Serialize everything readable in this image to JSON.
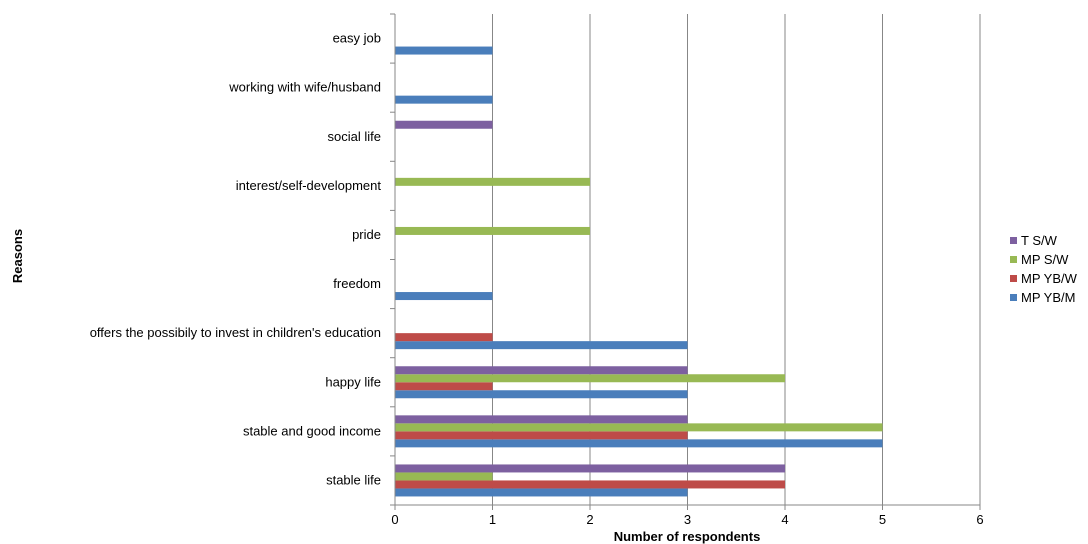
{
  "chart_data": {
    "type": "bar",
    "orientation": "horizontal",
    "title": "",
    "xlabel": "Number of respondents",
    "ylabel": "Reasons",
    "xlim": [
      0,
      6
    ],
    "xticks": [
      0,
      1,
      2,
      3,
      4,
      5,
      6
    ],
    "grid": "vertical",
    "legend_position": "right",
    "categories": [
      "stable life",
      "stable and good income",
      "happy life",
      "offers the possibily to invest in children's education",
      "freedom",
      "pride",
      "interest/self-development",
      "social life",
      "working with wife/husband",
      "easy job"
    ],
    "series": [
      {
        "name": "MP YB/M",
        "color": "#4a7ebb",
        "values": [
          3,
          5,
          3,
          3,
          1,
          0,
          0,
          0,
          1,
          1
        ]
      },
      {
        "name": "MP YB/W",
        "color": "#be4b48",
        "values": [
          4,
          3,
          1,
          1,
          0,
          0,
          0,
          0,
          0,
          0
        ]
      },
      {
        "name": "MP S/W",
        "color": "#98b954",
        "values": [
          1,
          5,
          4,
          0,
          0,
          2,
          2,
          0,
          0,
          0
        ]
      },
      {
        "name": "T S/W",
        "color": "#7d60a0",
        "values": [
          4,
          3,
          3,
          0,
          0,
          0,
          0,
          1,
          0,
          0
        ]
      }
    ],
    "legend_order": [
      "T S/W",
      "MP S/W",
      "MP YB/W",
      "MP YB/M"
    ]
  }
}
